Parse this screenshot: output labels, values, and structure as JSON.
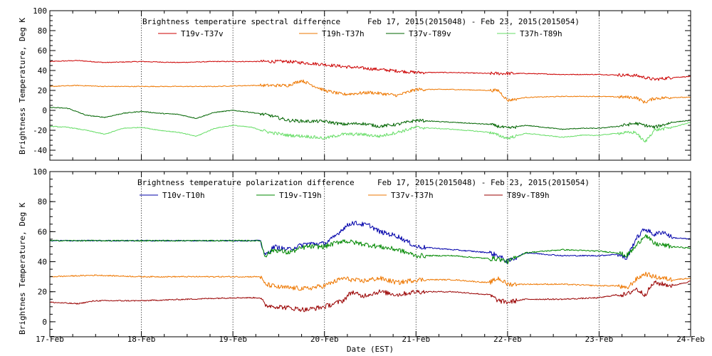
{
  "xlabel": "Date (EST)",
  "x_tick_labels": [
    "17-Feb",
    "18-Feb",
    "19-Feb",
    "20-Feb",
    "21-Feb",
    "22-Feb",
    "23-Feb",
    "24-Feb"
  ],
  "chart_data": [
    {
      "type": "line",
      "title": "Brightness temperature spectral difference",
      "date_range": "Feb 17, 2015(2015048) - Feb 23, 2015(2015054)",
      "ylabel": "Brightness Temperature, Deg K",
      "ylim": [
        -50,
        100
      ],
      "yticks": [
        -40,
        -20,
        0,
        20,
        40,
        60,
        80,
        100
      ],
      "xlim": [
        0,
        7
      ],
      "x_unit": "days since 17-Feb 00:00",
      "grid": "vertical dotted",
      "series": [
        {
          "name": "T19v-T37v",
          "color": "#cc0000",
          "x": [
            0,
            0.3,
            0.6,
            1.0,
            1.4,
            1.8,
            2.2,
            2.6,
            3.0,
            3.2,
            3.6,
            4.0,
            4.4,
            4.8,
            5.2,
            5.6,
            6.0,
            6.4,
            6.6,
            6.8,
            7.0
          ],
          "y": [
            49,
            50,
            48,
            49,
            48,
            49,
            49,
            49,
            46,
            44,
            41,
            38,
            38,
            37,
            37,
            36,
            36,
            35,
            31,
            33,
            34
          ]
        },
        {
          "name": "T19h-T37h",
          "color": "#ee7700",
          "x": [
            0,
            0.3,
            0.6,
            1.0,
            1.4,
            1.8,
            2.2,
            2.6,
            2.75,
            3.0,
            3.2,
            3.5,
            3.8,
            4.0,
            4.4,
            4.8,
            4.9,
            5.0,
            5.2,
            5.6,
            6.0,
            6.4,
            6.5,
            6.6,
            6.8,
            7.0
          ],
          "y": [
            24,
            25,
            24,
            24,
            24,
            24,
            25,
            25,
            30,
            20,
            16,
            18,
            15,
            21,
            21,
            20,
            20,
            10,
            13,
            14,
            14,
            13,
            8,
            12,
            13,
            13
          ]
        },
        {
          "name": "T37v-T89v",
          "color": "#006400",
          "x": [
            0,
            0.2,
            0.4,
            0.6,
            0.8,
            1.0,
            1.2,
            1.4,
            1.6,
            1.8,
            2.0,
            2.2,
            2.4,
            2.6,
            2.8,
            3.0,
            3.2,
            3.4,
            3.6,
            3.8,
            4.0,
            4.4,
            4.8,
            5.0,
            5.2,
            5.4,
            5.6,
            5.8,
            6.0,
            6.2,
            6.4,
            6.6,
            6.8,
            7.0
          ],
          "y": [
            3,
            2,
            -5,
            -7,
            -3,
            -1,
            -3,
            -4,
            -8,
            -2,
            0,
            -2,
            -5,
            -10,
            -11,
            -11,
            -14,
            -13,
            -16,
            -14,
            -10,
            -12,
            -14,
            -18,
            -15,
            -17,
            -19,
            -18,
            -18,
            -16,
            -13,
            -17,
            -12,
            -10
          ]
        },
        {
          "name": "T37h-T89h",
          "color": "#66dd66",
          "x": [
            0,
            0.2,
            0.4,
            0.6,
            0.8,
            1.0,
            1.2,
            1.4,
            1.6,
            1.8,
            2.0,
            2.2,
            2.4,
            2.6,
            2.8,
            3.0,
            3.2,
            3.4,
            3.6,
            3.8,
            4.0,
            4.4,
            4.8,
            5.0,
            5.2,
            5.4,
            5.6,
            5.8,
            6.0,
            6.2,
            6.4,
            6.5,
            6.6,
            6.8,
            7.0
          ],
          "y": [
            -16,
            -17,
            -20,
            -24,
            -18,
            -17,
            -20,
            -22,
            -26,
            -18,
            -15,
            -17,
            -22,
            -25,
            -26,
            -28,
            -24,
            -24,
            -26,
            -22,
            -17,
            -19,
            -22,
            -28,
            -23,
            -25,
            -27,
            -25,
            -25,
            -23,
            -22,
            -32,
            -20,
            -17,
            -12
          ]
        }
      ]
    },
    {
      "type": "line",
      "title": "Brightness temperature polarization difference",
      "date_range": "Feb 17, 2015(2015048) - Feb 23, 2015(2015054)",
      "ylabel": "Brightnes Temperature, Deg K",
      "ylim": [
        -10,
        100
      ],
      "yticks": [
        0,
        20,
        40,
        60,
        80,
        100
      ],
      "xlim": [
        0,
        7
      ],
      "x_unit": "days since 17-Feb 00:00",
      "grid": "vertical dotted",
      "series": [
        {
          "name": "T10v-T10h",
          "color": "#0000aa",
          "x": [
            0,
            0.5,
            1.0,
            1.5,
            2.0,
            2.3,
            2.35,
            2.45,
            2.6,
            2.8,
            3.0,
            3.1,
            3.2,
            3.3,
            3.5,
            3.6,
            3.8,
            4.0,
            4.4,
            4.8,
            4.9,
            5.0,
            5.2,
            5.4,
            5.6,
            5.8,
            6.0,
            6.2,
            6.3,
            6.4,
            6.5,
            6.6,
            6.7,
            6.8,
            7.0
          ],
          "y": [
            54,
            54,
            54,
            54,
            54,
            54,
            44,
            50,
            48,
            52,
            52,
            56,
            62,
            66,
            64,
            60,
            57,
            50,
            48,
            46,
            44,
            40,
            46,
            45,
            44,
            44,
            44,
            45,
            42,
            55,
            62,
            58,
            60,
            56,
            55
          ]
        },
        {
          "name": "T19v-T19h",
          "color": "#008800",
          "x": [
            0,
            0.5,
            1.0,
            1.5,
            2.0,
            2.3,
            2.35,
            2.45,
            2.6,
            2.8,
            3.0,
            3.2,
            3.4,
            3.6,
            3.8,
            4.0,
            4.4,
            4.8,
            4.9,
            5.0,
            5.2,
            5.6,
            6.0,
            6.2,
            6.3,
            6.4,
            6.5,
            6.6,
            6.8,
            7.0
          ],
          "y": [
            54,
            54,
            54,
            54,
            54,
            54,
            44,
            48,
            46,
            50,
            50,
            54,
            52,
            50,
            48,
            44,
            44,
            42,
            42,
            40,
            46,
            48,
            47,
            46,
            44,
            50,
            58,
            52,
            50,
            49
          ]
        },
        {
          "name": "T37v-T37h",
          "color": "#ee7700",
          "x": [
            0,
            0.5,
            1.0,
            1.5,
            2.0,
            2.3,
            2.35,
            2.5,
            2.8,
            3.0,
            3.2,
            3.4,
            3.6,
            3.8,
            4.0,
            4.4,
            4.8,
            4.9,
            5.0,
            5.2,
            5.6,
            6.0,
            6.2,
            6.3,
            6.4,
            6.5,
            6.6,
            6.8,
            7.0
          ],
          "y": [
            30,
            31,
            30,
            30,
            30,
            30,
            25,
            23,
            22,
            24,
            29,
            27,
            29,
            26,
            28,
            28,
            26,
            29,
            25,
            25,
            25,
            24,
            24,
            22,
            28,
            32,
            30,
            28,
            29
          ]
        },
        {
          "name": "T89v-T89h",
          "color": "#990000",
          "x": [
            0,
            0.3,
            0.5,
            1.0,
            1.5,
            2.0,
            2.3,
            2.35,
            2.5,
            2.8,
            3.0,
            3.2,
            3.3,
            3.4,
            3.6,
            3.8,
            4.0,
            4.4,
            4.8,
            4.9,
            5.0,
            5.2,
            5.6,
            6.0,
            6.2,
            6.3,
            6.4,
            6.5,
            6.6,
            6.8,
            7.0
          ],
          "y": [
            13,
            12,
            14,
            14,
            15,
            16,
            16,
            11,
            10,
            8,
            10,
            14,
            20,
            17,
            20,
            18,
            20,
            20,
            18,
            14,
            13,
            15,
            15,
            16,
            18,
            18,
            22,
            18,
            26,
            24,
            27
          ]
        }
      ]
    }
  ]
}
